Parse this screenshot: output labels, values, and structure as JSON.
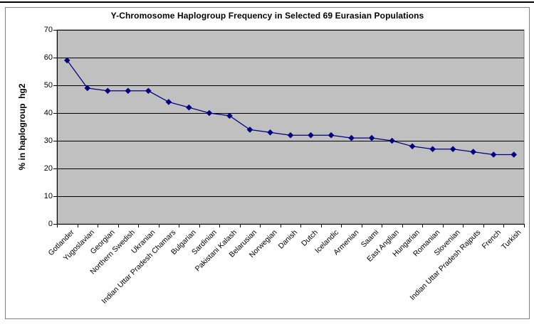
{
  "chart_data": {
    "type": "line",
    "title": "Y-Chromosome Haplogroup Frequency in Selected 69 Eurasian Populations",
    "xlabel": "",
    "ylabel": "% in haplogroup  hg2",
    "ylim": [
      0,
      70
    ],
    "yticks": [
      0,
      10,
      20,
      30,
      40,
      50,
      60,
      70
    ],
    "grid": true,
    "legend": "none",
    "marker": "diamond",
    "categories": [
      "Gotlander",
      "Yugoslavian",
      "Georgian",
      "Northern Swedish",
      "Ukranian",
      "Indian Uttar Pradesh Chamars",
      "Bulgarian",
      "Sardinian",
      "Pakistani Kalash",
      "Belarusian",
      "Norwegian",
      "Danish",
      "Dutch",
      "Icelandic",
      "Armenian",
      "Saami",
      "East Anglian",
      "Hungarian",
      "Romanian",
      "Slovenian",
      "Indian Uttar Pradesh Rajputs",
      "French",
      "Turkish"
    ],
    "values": [
      59,
      49,
      48,
      48,
      48,
      44,
      42,
      40,
      39,
      34,
      33,
      32,
      32,
      32,
      31,
      31,
      30,
      28,
      27,
      27,
      26,
      25,
      25
    ],
    "colors": {
      "line": "#000080",
      "marker": "#000080",
      "plot_background": "#c0c0c0",
      "plot_border": "#808080",
      "gridline": "#000000",
      "axis": "#000000",
      "chart_background": "#ffffff"
    }
  }
}
